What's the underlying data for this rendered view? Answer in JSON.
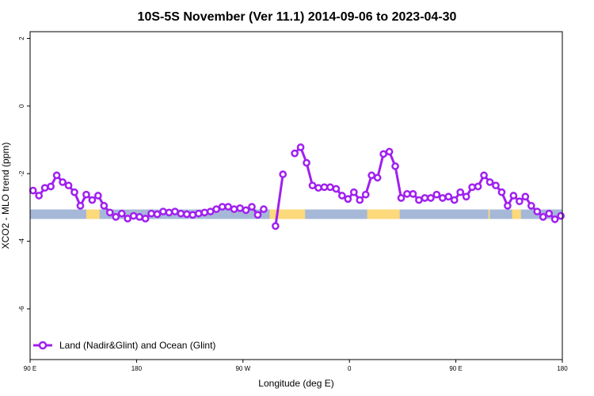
{
  "chart_data": {
    "type": "line",
    "title": "10S-5S November (Ver 11.1)   2014-09-06 to 2023-04-30",
    "xlabel": "Longitude (deg E)",
    "ylabel": "XCO2 - MLO trend (ppm)",
    "xlim": [
      90,
      450
    ],
    "ylim": [
      -7.5,
      2.2
    ],
    "x_ticks": [
      {
        "value": 90,
        "label": "90 E"
      },
      {
        "value": 162,
        "label": "180"
      },
      {
        "value": 234,
        "label": "90 W"
      },
      {
        "value": 306,
        "label": "0"
      },
      {
        "value": 378,
        "label": "90 E"
      },
      {
        "value": 450,
        "label": "180"
      }
    ],
    "y_ticks": [
      {
        "value": 2,
        "label": "2"
      },
      {
        "value": 0,
        "label": "0"
      },
      {
        "value": -2,
        "label": "-2"
      },
      {
        "value": -4,
        "label": "-4"
      },
      {
        "value": -6,
        "label": "-6"
      }
    ],
    "grid": false,
    "legend": {
      "position": "bottom-left",
      "entries": [
        "Land (Nadir&Glint) and Ocean (Glint)"
      ]
    },
    "series": [
      {
        "name": "Land (Nadir&Glint) and Ocean (Glint)",
        "color": "#a020f0",
        "segments": [
          [
            [
              92,
              -2.5
            ],
            [
              96,
              -2.65
            ],
            [
              100,
              -2.42
            ],
            [
              104,
              -2.38
            ],
            [
              108,
              -2.05
            ],
            [
              112,
              -2.25
            ],
            [
              116,
              -2.35
            ],
            [
              120,
              -2.55
            ],
            [
              124,
              -2.95
            ],
            [
              128,
              -2.62
            ],
            [
              132,
              -2.78
            ],
            [
              136,
              -2.65
            ],
            [
              140,
              -2.95
            ],
            [
              144,
              -3.15
            ],
            [
              148,
              -3.28
            ],
            [
              152,
              -3.18
            ],
            [
              156,
              -3.33
            ],
            [
              160,
              -3.25
            ],
            [
              164,
              -3.28
            ],
            [
              168,
              -3.33
            ],
            [
              172,
              -3.18
            ],
            [
              176,
              -3.2
            ],
            [
              180,
              -3.12
            ],
            [
              184,
              -3.15
            ],
            [
              188,
              -3.12
            ],
            [
              192,
              -3.18
            ],
            [
              196,
              -3.2
            ],
            [
              200,
              -3.22
            ],
            [
              204,
              -3.18
            ],
            [
              208,
              -3.15
            ],
            [
              212,
              -3.12
            ],
            [
              216,
              -3.05
            ],
            [
              220,
              -2.98
            ],
            [
              224,
              -2.98
            ],
            [
              228,
              -3.05
            ],
            [
              232,
              -3.02
            ],
            [
              236,
              -3.08
            ],
            [
              240,
              -2.98
            ],
            [
              244,
              -3.22
            ],
            [
              248,
              -3.05
            ]
          ],
          [
            [
              256,
              -3.55
            ],
            [
              261,
              -2.02
            ]
          ],
          [
            [
              269,
              -1.4
            ],
            [
              273,
              -1.22
            ],
            [
              277,
              -1.68
            ],
            [
              281,
              -2.35
            ],
            [
              285,
              -2.42
            ],
            [
              289,
              -2.4
            ],
            [
              293,
              -2.4
            ],
            [
              297,
              -2.45
            ],
            [
              301,
              -2.65
            ],
            [
              305,
              -2.75
            ],
            [
              309,
              -2.55
            ],
            [
              313,
              -2.78
            ],
            [
              317,
              -2.62
            ],
            [
              321,
              -2.05
            ],
            [
              325,
              -2.12
            ],
            [
              329,
              -1.42
            ],
            [
              333,
              -1.35
            ],
            [
              337,
              -1.78
            ],
            [
              341,
              -2.72
            ],
            [
              345,
              -2.6
            ],
            [
              349,
              -2.6
            ],
            [
              353,
              -2.78
            ],
            [
              357,
              -2.72
            ],
            [
              361,
              -2.72
            ],
            [
              365,
              -2.62
            ],
            [
              369,
              -2.72
            ],
            [
              373,
              -2.68
            ],
            [
              377,
              -2.78
            ],
            [
              381,
              -2.55
            ],
            [
              385,
              -2.68
            ],
            [
              389,
              -2.4
            ],
            [
              393,
              -2.38
            ],
            [
              397,
              -2.05
            ],
            [
              401,
              -2.25
            ],
            [
              405,
              -2.35
            ],
            [
              409,
              -2.55
            ],
            [
              413,
              -2.95
            ],
            [
              417,
              -2.65
            ],
            [
              421,
              -2.82
            ],
            [
              425,
              -2.68
            ],
            [
              429,
              -2.95
            ],
            [
              433,
              -3.12
            ],
            [
              437,
              -3.28
            ],
            [
              441,
              -3.18
            ],
            [
              445,
              -3.35
            ],
            [
              449,
              -3.25
            ]
          ]
        ]
      }
    ],
    "surface_band": {
      "y_center": -3.2,
      "ocean_color": "#a6b8d8",
      "land_color": "#fcd97a",
      "land_ranges": [
        [
          128,
          137
        ],
        [
          252,
          276
        ],
        [
          318,
          340
        ],
        [
          400,
          401
        ],
        [
          416,
          422
        ]
      ]
    }
  }
}
